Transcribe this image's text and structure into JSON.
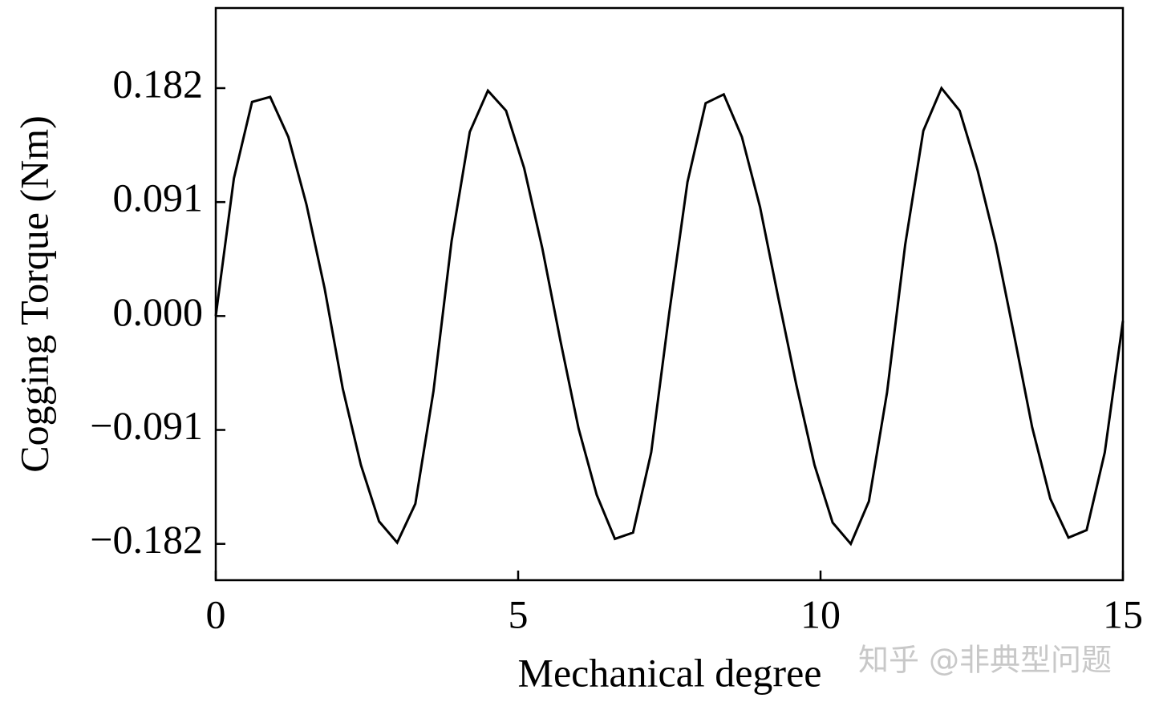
{
  "chart_data": {
    "type": "line",
    "xlabel": "Mechanical degree",
    "ylabel": "Cogging Torque (Nm)",
    "watermark": "知乎 @非典型问题",
    "x": [
      0,
      0.3,
      0.6,
      0.9,
      1.2,
      1.5,
      1.8,
      2.1,
      2.4,
      2.7,
      3.0,
      3.3,
      3.6,
      3.9,
      4.2,
      4.5,
      4.8,
      5.1,
      5.4,
      5.7,
      6.0,
      6.3,
      6.6,
      6.9,
      7.2,
      7.5,
      7.8,
      8.1,
      8.4,
      8.7,
      9.0,
      9.3,
      9.6,
      9.9,
      10.2,
      10.5,
      10.8,
      11.1,
      11.4,
      11.7,
      12.0,
      12.3,
      12.6,
      12.9,
      13.2,
      13.5,
      13.8,
      14.1,
      14.4,
      14.7,
      15.0
    ],
    "series": [
      {
        "name": "Cogging Torque",
        "color": "#000000",
        "values": [
          0,
          0.11,
          0.171,
          0.175,
          0.143,
          0.089,
          0.022,
          -0.058,
          -0.119,
          -0.164,
          -0.181,
          -0.15,
          -0.06,
          0.06,
          0.147,
          0.18,
          0.164,
          0.118,
          0.054,
          -0.02,
          -0.09,
          -0.143,
          -0.178,
          -0.173,
          -0.109,
          0.003,
          0.107,
          0.17,
          0.177,
          0.143,
          0.087,
          0.015,
          -0.055,
          -0.119,
          -0.165,
          -0.182,
          -0.148,
          -0.061,
          0.057,
          0.148,
          0.182,
          0.164,
          0.116,
          0.057,
          -0.015,
          -0.089,
          -0.146,
          -0.177,
          -0.171,
          -0.109,
          -0.004
        ]
      }
    ],
    "xlim": [
      0,
      15
    ],
    "xticks": [
      0,
      5,
      10,
      15
    ],
    "ylim": [
      -0.211,
      0.246
    ],
    "yticks": [
      {
        "value": -0.182,
        "label": "−0.182"
      },
      {
        "value": -0.091,
        "label": "−0.091"
      },
      {
        "value": 0,
        "label": "0.000"
      },
      {
        "value": 0.091,
        "label": "0.091"
      },
      {
        "value": 0.182,
        "label": "0.182"
      }
    ],
    "grid": false
  }
}
